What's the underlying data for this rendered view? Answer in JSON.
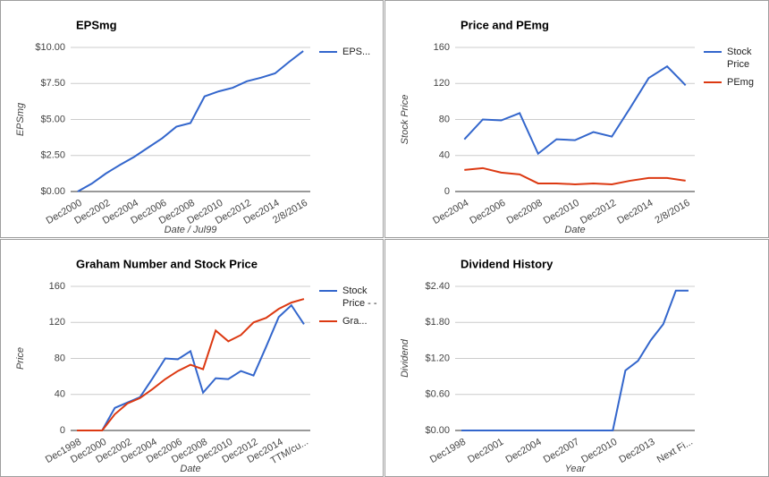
{
  "chart_data": [
    {
      "type": "line",
      "title": "EPSmg",
      "x_label": "Date / Jul99",
      "y_label": "EPSmg",
      "categories": [
        "Dec2000",
        null,
        "Dec2002",
        null,
        "Dec2004",
        null,
        "Dec2006",
        null,
        "Dec2008",
        null,
        "Dec2010",
        null,
        "Dec2012",
        null,
        "Dec2014",
        null,
        "2/8/2016"
      ],
      "series": [
        {
          "name": "EPS...",
          "color": "#3366cc",
          "values": [
            0,
            0.55,
            1.25,
            1.85,
            2.4,
            3.05,
            3.7,
            4.5,
            4.75,
            6.6,
            6.95,
            7.2,
            7.65,
            7.9,
            8.2,
            9.0,
            9.75
          ]
        }
      ],
      "ylim": [
        0,
        10
      ],
      "yticks": [
        {
          "value": 0,
          "label": "$0.00"
        },
        {
          "value": 2.5,
          "label": "$2.50"
        },
        {
          "value": 5,
          "label": "$5.00"
        },
        {
          "value": 7.5,
          "label": "$7.50"
        },
        {
          "value": 10,
          "label": "$10.00"
        }
      ],
      "grid": true,
      "legend": "right"
    },
    {
      "type": "line",
      "title": "Price and PEmg",
      "x_label": "Date",
      "y_label": "Stock Price",
      "categories": [
        "Dec2004",
        null,
        "Dec2006",
        null,
        "Dec2008",
        null,
        "Dec2010",
        null,
        "Dec2012",
        null,
        "Dec2014",
        null,
        "2/8/2016"
      ],
      "series": [
        {
          "name": "Stock Price",
          "color": "#3366cc",
          "values": [
            58,
            80,
            79,
            87,
            42,
            58,
            57,
            66,
            61,
            93,
            126,
            139,
            118
          ]
        },
        {
          "name": "PEmg",
          "color": "#dc3912",
          "values": [
            24,
            26,
            21,
            19,
            9,
            9,
            8,
            9,
            8,
            12,
            15,
            15,
            12
          ]
        }
      ],
      "ylim": [
        0,
        160
      ],
      "yticks": [
        0,
        40,
        80,
        120,
        160
      ],
      "grid": true,
      "legend": "right"
    },
    {
      "type": "line",
      "title": "Graham Number and Stock Price",
      "x_label": "Date",
      "y_label": "Price",
      "categories": [
        "Dec1998",
        null,
        "Dec2000",
        null,
        "Dec2002",
        null,
        "Dec2004",
        null,
        "Dec2006",
        null,
        "Dec2008",
        null,
        "Dec2010",
        null,
        "Dec2012",
        null,
        "Dec2014",
        null,
        "TTM/cu..."
      ],
      "series": [
        {
          "name": "Stock Price - -",
          "color": "#3366cc",
          "values": [
            0,
            0,
            0,
            25,
            31,
            37,
            58,
            80,
            79,
            88,
            42,
            58,
            57,
            66,
            61,
            93,
            126,
            139,
            118
          ]
        },
        {
          "name": "Gra...",
          "color": "#dc3912",
          "values": [
            0,
            0,
            0,
            18,
            30,
            36,
            46,
            57,
            66,
            73,
            68,
            111,
            99,
            106,
            120,
            125,
            135,
            142,
            146
          ]
        }
      ],
      "ylim": [
        0,
        160
      ],
      "yticks": [
        0,
        40,
        80,
        120,
        160
      ],
      "grid": true,
      "legend": "right"
    },
    {
      "type": "line",
      "title": "Dividend History",
      "x_label": "Year",
      "y_label": "Dividend",
      "categories": [
        "Dec1998",
        null,
        null,
        "Dec2001",
        null,
        null,
        "Dec2004",
        null,
        null,
        "Dec2007",
        null,
        null,
        "Dec2010",
        null,
        null,
        "Dec2013",
        null,
        null,
        "Next Fi..."
      ],
      "series": [
        {
          "color": "#3366cc",
          "values": [
            0,
            0,
            0,
            0,
            0,
            0,
            0,
            0,
            0,
            0,
            0,
            0,
            0,
            1.0,
            1.16,
            1.5,
            1.77,
            2.33,
            2.33
          ]
        }
      ],
      "ylim": [
        0,
        2.4
      ],
      "yticks": [
        {
          "value": 0,
          "label": "$0.00"
        },
        {
          "value": 0.6,
          "label": "$0.60"
        },
        {
          "value": 1.2,
          "label": "$1.20"
        },
        {
          "value": 1.8,
          "label": "$1.80"
        },
        {
          "value": 2.4,
          "label": "$2.40"
        }
      ],
      "grid": true,
      "legend": "none"
    }
  ]
}
